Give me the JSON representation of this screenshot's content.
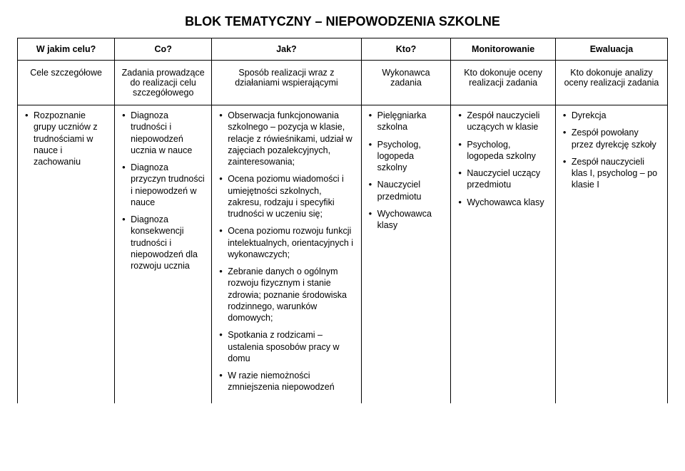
{
  "title": "BLOK TEMATYCZNY – NIEPOWODZENIA SZKOLNE",
  "header_row1": {
    "c1": "W jakim celu?",
    "c2": "Co?",
    "c3": "Jak?",
    "c4": "Kto?",
    "c5": "Monitorowanie",
    "c6": "Ewaluacja"
  },
  "header_row2": {
    "c1": "Cele szczegółowe",
    "c2": "Zadania prowadzące do realizacji celu szczegółowego",
    "c3": "Sposób realizacji wraz z działaniami wspierającymi",
    "c4": "Wykonawca zadania",
    "c5": "Kto dokonuje oceny realizacji zadania",
    "c6": "Kto dokonuje analizy oceny realizacji zadania"
  },
  "row": {
    "cele": {
      "items": [
        "Rozpoznanie grupy uczniów z trudnościami w nauce i zachowaniu"
      ]
    },
    "zadania": {
      "items": [
        "Diagnoza trudności i niepowodzeń ucznia w nauce",
        "Diagnoza przyczyn trudności i niepowodzeń w nauce",
        "Diagnoza konsekwencji trudności i niepowodzeń dla rozwoju ucznia"
      ]
    },
    "sposob": {
      "items": [
        "Obserwacja funkcjonowania szkolnego – pozycja w klasie, relacje z rówieśnikami, udział w zajęciach pozalekcyjnych, zainteresowania;",
        "Ocena poziomu wiadomości i umiejętności szkolnych, zakresu, rodzaju i specyfiki trudności w uczeniu się;",
        "Ocena poziomu rozwoju funkcji intelektualnych, orientacyjnych i wykonawczych;",
        "Zebranie danych o ogólnym rozwoju fizycznym i stanie zdrowia; poznanie środowiska rodzinnego, warunków domowych;",
        "Spotkania z rodzicami – ustalenia sposobów pracy w domu",
        "W razie niemożności zmniejszenia niepowodzeń"
      ]
    },
    "wyk": {
      "items": [
        "Pielęgniarka szkolna",
        "Psycholog, logopeda szkolny",
        "Nauczyciel przedmiotu",
        "Wychowawca klasy"
      ]
    },
    "kto": {
      "items": [
        "Zespół nauczycieli uczących w klasie",
        "Psycholog, logopeda szkolny",
        "Nauczyciel uczący przedmiotu",
        "Wychowawca klasy"
      ]
    },
    "anal": {
      "items": [
        "Dyrekcja",
        "Zespół powołany przez dyrekcję szkoły",
        "Zespół nauczycieli klas I, psycholog – po klasie I"
      ]
    }
  }
}
